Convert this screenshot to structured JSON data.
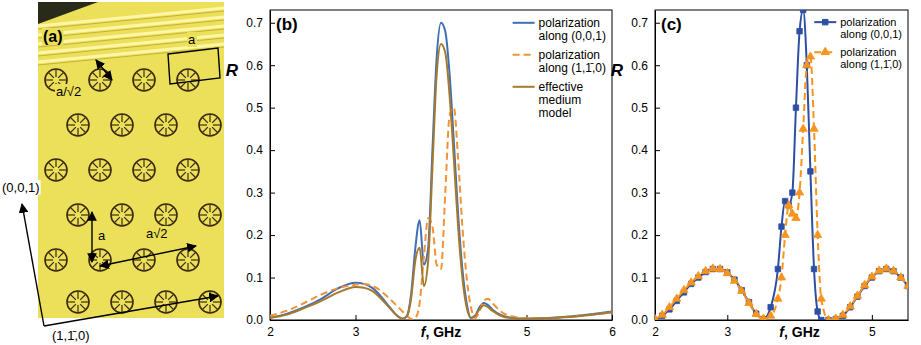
{
  "chart_data": [
    {
      "type": "line",
      "title": "(b)",
      "x_label": "f, GHz",
      "y_label": "R",
      "x": [
        2.0,
        2.2,
        2.4,
        2.6,
        2.8,
        3.0,
        3.1,
        3.2,
        3.3,
        3.4,
        3.5,
        3.55,
        3.6,
        3.65,
        3.7,
        3.75,
        3.8,
        3.85,
        3.9,
        3.95,
        4.0,
        4.05,
        4.1,
        4.15,
        4.2,
        4.25,
        4.3,
        4.35,
        4.4,
        4.45,
        4.5,
        4.55,
        4.6,
        4.7,
        4.8,
        5.0,
        5.2,
        5.5,
        5.8,
        6.0
      ],
      "series": [
        {
          "name": "polarization along (0,0,1)",
          "color": "#3f6fb5",
          "line_style": "solid",
          "values": [
            0.005,
            0.015,
            0.03,
            0.05,
            0.075,
            0.088,
            0.085,
            0.075,
            0.055,
            0.03,
            0.008,
            0.003,
            0.01,
            0.06,
            0.17,
            0.235,
            0.13,
            0.17,
            0.4,
            0.62,
            0.7,
            0.68,
            0.58,
            0.42,
            0.25,
            0.12,
            0.04,
            0.005,
            0.01,
            0.03,
            0.04,
            0.035,
            0.025,
            0.012,
            0.006,
            0.003,
            0.004,
            0.008,
            0.015,
            0.02
          ]
        },
        {
          "name": "polarization along (1,1̄,0)",
          "color": "#f39237",
          "line_style": "dashed",
          "values": [
            0.01,
            0.022,
            0.04,
            0.06,
            0.075,
            0.083,
            0.085,
            0.08,
            0.068,
            0.05,
            0.03,
            0.02,
            0.01,
            0.003,
            0.005,
            0.04,
            0.15,
            0.24,
            0.22,
            0.13,
            0.12,
            0.3,
            0.48,
            0.5,
            0.38,
            0.22,
            0.1,
            0.03,
            0.005,
            0.02,
            0.045,
            0.05,
            0.04,
            0.02,
            0.01,
            0.004,
            0.004,
            0.008,
            0.013,
            0.018
          ]
        },
        {
          "name": "effective medium model",
          "color": "#a57a2f",
          "line_style": "solid",
          "values": [
            0.005,
            0.013,
            0.028,
            0.045,
            0.065,
            0.078,
            0.076,
            0.068,
            0.05,
            0.028,
            0.008,
            0.003,
            0.008,
            0.05,
            0.14,
            0.17,
            0.08,
            0.14,
            0.36,
            0.58,
            0.65,
            0.63,
            0.53,
            0.38,
            0.22,
            0.1,
            0.03,
            0.005,
            0.01,
            0.025,
            0.035,
            0.03,
            0.022,
            0.01,
            0.005,
            0.003,
            0.004,
            0.007,
            0.013,
            0.018
          ]
        }
      ],
      "xlim": [
        2,
        6
      ],
      "xticks": [
        2,
        3,
        5,
        6
      ],
      "ylim": [
        0,
        0.73
      ],
      "yticks": [
        {
          "value": 0,
          "label": "0.0"
        },
        0.1,
        0.2,
        0.3,
        0.4,
        0.5,
        0.6,
        0.7
      ],
      "legend": "upper right"
    },
    {
      "type": "line",
      "title": "(c)",
      "x_label": "f, GHz",
      "y_label": "R",
      "x": [
        2.0,
        2.1,
        2.2,
        2.3,
        2.4,
        2.5,
        2.6,
        2.7,
        2.8,
        2.9,
        3.0,
        3.1,
        3.2,
        3.3,
        3.4,
        3.5,
        3.6,
        3.7,
        3.75,
        3.8,
        3.85,
        3.9,
        3.95,
        4.0,
        4.05,
        4.1,
        4.15,
        4.2,
        4.25,
        4.3,
        4.4,
        4.5,
        4.6,
        4.7,
        4.8,
        4.9,
        5.0,
        5.1,
        5.2,
        5.3,
        5.4,
        5.5
      ],
      "series": [
        {
          "name": "polarization along (0,0,1)",
          "color": "#2d4fa3",
          "line_style": "solid",
          "marker": "square",
          "values": [
            0,
            0.01,
            0.025,
            0.045,
            0.065,
            0.085,
            0.1,
            0.113,
            0.12,
            0.12,
            0.112,
            0.095,
            0.07,
            0.042,
            0.015,
            0.002,
            0.03,
            0.12,
            0.22,
            0.28,
            0.27,
            0.3,
            0.5,
            0.68,
            0.73,
            0.6,
            0.35,
            0.12,
            0.02,
            0,
            0,
            0.002,
            0.01,
            0.03,
            0.055,
            0.08,
            0.1,
            0.115,
            0.12,
            0.115,
            0.1,
            0.08
          ]
        },
        {
          "name": "polarization along (1,1̄,0)",
          "color": "#f7941d",
          "line_style": "dashed",
          "marker": "triangle",
          "values": [
            0.002,
            0.012,
            0.03,
            0.05,
            0.07,
            0.088,
            0.103,
            0.115,
            0.121,
            0.12,
            0.11,
            0.092,
            0.068,
            0.04,
            0.014,
            0.003,
            0.01,
            0.05,
            0.1,
            0.2,
            0.27,
            0.25,
            0.24,
            0.3,
            0.45,
            0.6,
            0.62,
            0.45,
            0.2,
            0.05,
            0,
            0.003,
            0.012,
            0.032,
            0.057,
            0.082,
            0.102,
            0.116,
            0.121,
            0.116,
            0.1,
            0.08
          ]
        }
      ],
      "xlim": [
        2,
        5.5
      ],
      "xticks": [
        2,
        3,
        5
      ],
      "ylim": [
        0,
        0.73
      ],
      "yticks": [
        {
          "value": 0,
          "label": "0.0"
        },
        0.1,
        0.2,
        0.3,
        0.4,
        0.5,
        0.6,
        0.7
      ],
      "legend": "upper right"
    }
  ],
  "photo": {
    "label": "(a)",
    "annotations": [
      "a/√2",
      "a",
      "(0,0,1)",
      "a",
      "a√2",
      "(1,1̄,0)"
    ]
  }
}
